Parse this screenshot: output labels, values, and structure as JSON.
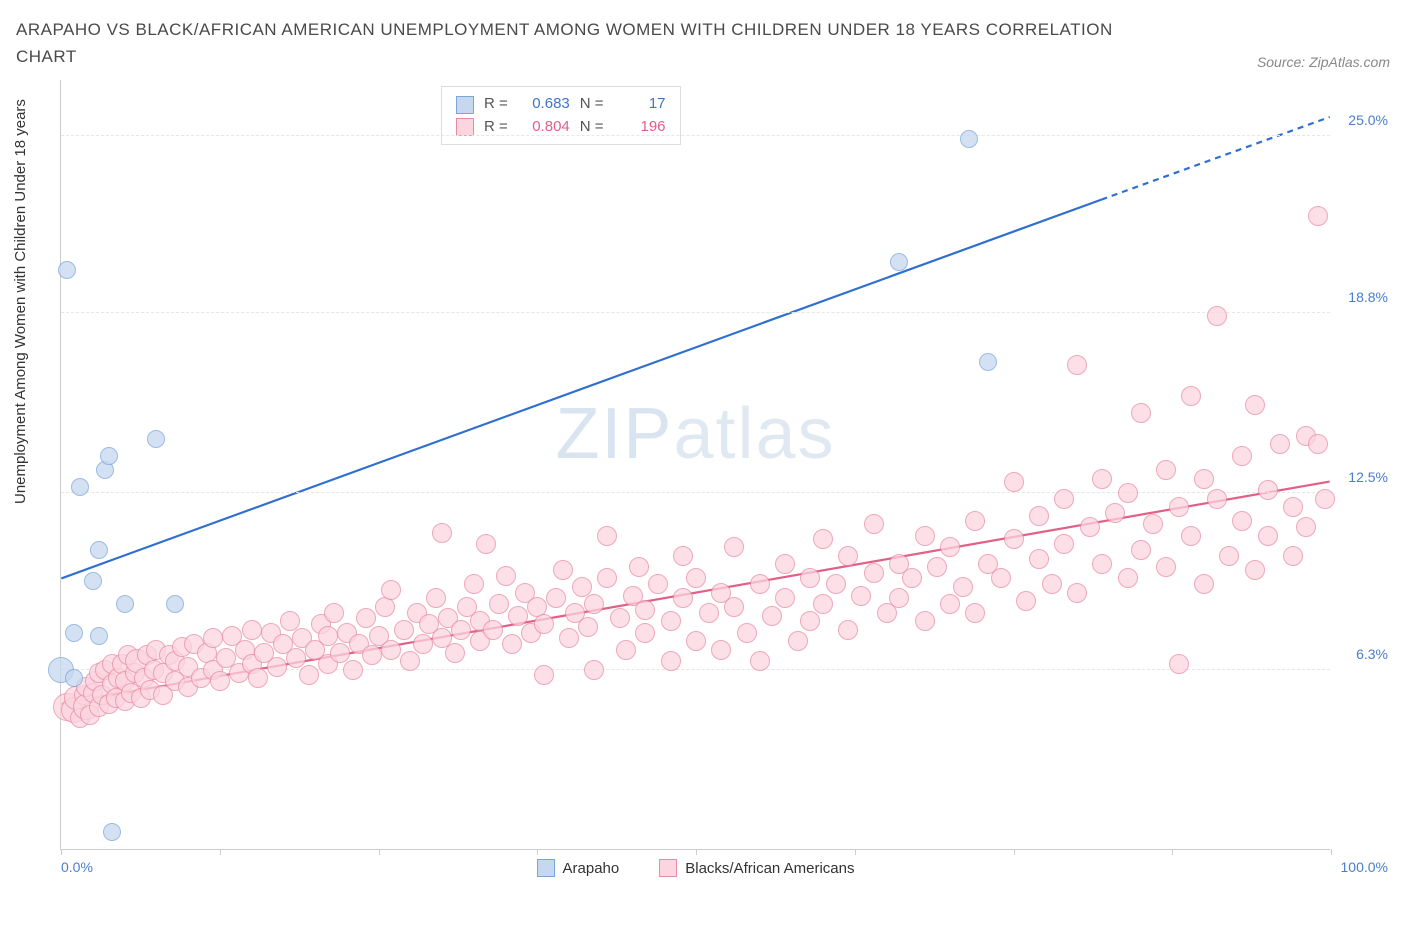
{
  "title": "ARAPAHO VS BLACK/AFRICAN AMERICAN UNEMPLOYMENT AMONG WOMEN WITH CHILDREN UNDER 18 YEARS CORRELATION CHART",
  "source": "Source: ZipAtlas.com",
  "ylabel": "Unemployment Among Women with Children Under 18 years",
  "watermark_a": "ZIP",
  "watermark_b": "atlas",
  "chart": {
    "type": "scatter",
    "xlim": [
      0,
      100
    ],
    "ylim": [
      0,
      27
    ],
    "x_min_label": "0.0%",
    "x_max_label": "100.0%",
    "y_ticks": [
      6.3,
      12.5,
      18.8,
      25.0
    ],
    "y_tick_labels": [
      "6.3%",
      "12.5%",
      "18.8%",
      "25.0%"
    ],
    "x_tick_positions": [
      0,
      12.5,
      25,
      37.5,
      50,
      62.5,
      75,
      87.5,
      100
    ],
    "grid_color": "#e6e6e6",
    "background_color": "#ffffff",
    "axis_color": "#cccccc",
    "tick_label_color": "#4a7ecb",
    "series": {
      "arapaho": {
        "label": "Arapaho",
        "R_label": "R =",
        "R": "0.683",
        "N_label": "N =",
        "N": "17",
        "fill": "#c5d8f0",
        "stroke": "#7aa6d9",
        "value_color": "#3f77c6",
        "marker_r": 9,
        "line_color": "#2f6fcf",
        "line_width": 2.2,
        "trend": {
          "x1": 0,
          "y1": 9.5,
          "x2_solid": 82,
          "y2_solid": 22.8,
          "x2": 100,
          "y2": 25.7
        },
        "points": [
          {
            "x": 0,
            "y": 6.3,
            "r": 13
          },
          {
            "x": 0.5,
            "y": 20.3
          },
          {
            "x": 1,
            "y": 7.6
          },
          {
            "x": 1,
            "y": 6.0
          },
          {
            "x": 1.5,
            "y": 12.7
          },
          {
            "x": 2.5,
            "y": 9.4
          },
          {
            "x": 3,
            "y": 7.5
          },
          {
            "x": 3,
            "y": 10.5
          },
          {
            "x": 3.5,
            "y": 13.3
          },
          {
            "x": 3.8,
            "y": 13.8
          },
          {
            "x": 4,
            "y": 0.6
          },
          {
            "x": 5,
            "y": 8.6
          },
          {
            "x": 7.5,
            "y": 14.4
          },
          {
            "x": 9,
            "y": 8.6
          },
          {
            "x": 66,
            "y": 20.6
          },
          {
            "x": 71.5,
            "y": 24.9
          },
          {
            "x": 73,
            "y": 17.1
          }
        ]
      },
      "black": {
        "label": "Blacks/African Americans",
        "R_label": "R =",
        "R": "0.804",
        "N_label": "N =",
        "N": "196",
        "fill": "#fbd5df",
        "stroke": "#e98ba6",
        "value_color": "#e35f88",
        "marker_r": 10,
        "line_color": "#e35f88",
        "line_width": 2.2,
        "trend": {
          "x1": 0,
          "y1": 5.1,
          "x2": 100,
          "y2": 12.9
        },
        "points": [
          {
            "x": 0.5,
            "y": 5.0,
            "r": 14
          },
          {
            "x": 1,
            "y": 4.9,
            "r": 13
          },
          {
            "x": 1.2,
            "y": 5.3,
            "r": 12
          },
          {
            "x": 1.5,
            "y": 4.6
          },
          {
            "x": 1.8,
            "y": 5.4
          },
          {
            "x": 2,
            "y": 5.0,
            "r": 13
          },
          {
            "x": 2,
            "y": 5.7
          },
          {
            "x": 2.3,
            "y": 4.7
          },
          {
            "x": 2.5,
            "y": 5.5
          },
          {
            "x": 2.7,
            "y": 5.9
          },
          {
            "x": 3,
            "y": 5.0
          },
          {
            "x": 3,
            "y": 6.2
          },
          {
            "x": 3.2,
            "y": 5.4
          },
          {
            "x": 3.5,
            "y": 6.3
          },
          {
            "x": 3.8,
            "y": 5.1
          },
          {
            "x": 4,
            "y": 5.8
          },
          {
            "x": 4,
            "y": 6.5
          },
          {
            "x": 4.3,
            "y": 5.3
          },
          {
            "x": 4.5,
            "y": 6.0
          },
          {
            "x": 4.8,
            "y": 6.5
          },
          {
            "x": 5,
            "y": 5.2
          },
          {
            "x": 5,
            "y": 5.9
          },
          {
            "x": 5.3,
            "y": 6.8
          },
          {
            "x": 5.5,
            "y": 5.5
          },
          {
            "x": 5.8,
            "y": 6.2
          },
          {
            "x": 6,
            "y": 6.6,
            "r": 12
          },
          {
            "x": 6.3,
            "y": 5.3
          },
          {
            "x": 6.5,
            "y": 6.0
          },
          {
            "x": 6.8,
            "y": 6.8
          },
          {
            "x": 7,
            "y": 5.6
          },
          {
            "x": 7.3,
            "y": 6.3
          },
          {
            "x": 7.5,
            "y": 7.0
          },
          {
            "x": 8,
            "y": 5.4
          },
          {
            "x": 8,
            "y": 6.2
          },
          {
            "x": 8.5,
            "y": 6.8
          },
          {
            "x": 9,
            "y": 5.9
          },
          {
            "x": 9,
            "y": 6.6
          },
          {
            "x": 9.5,
            "y": 7.1
          },
          {
            "x": 10,
            "y": 5.7
          },
          {
            "x": 10,
            "y": 6.4
          },
          {
            "x": 10.5,
            "y": 7.2
          },
          {
            "x": 11,
            "y": 6.0
          },
          {
            "x": 11.5,
            "y": 6.9
          },
          {
            "x": 12,
            "y": 6.3
          },
          {
            "x": 12,
            "y": 7.4
          },
          {
            "x": 12.5,
            "y": 5.9
          },
          {
            "x": 13,
            "y": 6.7
          },
          {
            "x": 13.5,
            "y": 7.5
          },
          {
            "x": 14,
            "y": 6.2
          },
          {
            "x": 14.5,
            "y": 7.0
          },
          {
            "x": 15,
            "y": 6.5
          },
          {
            "x": 15,
            "y": 7.7
          },
          {
            "x": 15.5,
            "y": 6.0
          },
          {
            "x": 16,
            "y": 6.9
          },
          {
            "x": 16.5,
            "y": 7.6
          },
          {
            "x": 17,
            "y": 6.4
          },
          {
            "x": 17.5,
            "y": 7.2
          },
          {
            "x": 18,
            "y": 8.0
          },
          {
            "x": 18.5,
            "y": 6.7
          },
          {
            "x": 19,
            "y": 7.4
          },
          {
            "x": 19.5,
            "y": 6.1
          },
          {
            "x": 20,
            "y": 7.0
          },
          {
            "x": 20.5,
            "y": 7.9
          },
          {
            "x": 21,
            "y": 6.5
          },
          {
            "x": 21,
            "y": 7.5
          },
          {
            "x": 21.5,
            "y": 8.3
          },
          {
            "x": 22,
            "y": 6.9
          },
          {
            "x": 22.5,
            "y": 7.6
          },
          {
            "x": 23,
            "y": 6.3
          },
          {
            "x": 23.5,
            "y": 7.2
          },
          {
            "x": 24,
            "y": 8.1
          },
          {
            "x": 24.5,
            "y": 6.8
          },
          {
            "x": 25,
            "y": 7.5
          },
          {
            "x": 25.5,
            "y": 8.5
          },
          {
            "x": 26,
            "y": 7.0
          },
          {
            "x": 26,
            "y": 9.1
          },
          {
            "x": 27,
            "y": 7.7
          },
          {
            "x": 27.5,
            "y": 6.6
          },
          {
            "x": 28,
            "y": 8.3
          },
          {
            "x": 28.5,
            "y": 7.2
          },
          {
            "x": 29,
            "y": 7.9
          },
          {
            "x": 29.5,
            "y": 8.8
          },
          {
            "x": 30,
            "y": 7.4
          },
          {
            "x": 30,
            "y": 11.1
          },
          {
            "x": 30.5,
            "y": 8.1
          },
          {
            "x": 31,
            "y": 6.9
          },
          {
            "x": 31.5,
            "y": 7.7
          },
          {
            "x": 32,
            "y": 8.5
          },
          {
            "x": 32.5,
            "y": 9.3
          },
          {
            "x": 33,
            "y": 7.3
          },
          {
            "x": 33,
            "y": 8.0
          },
          {
            "x": 33.5,
            "y": 10.7
          },
          {
            "x": 34,
            "y": 7.7
          },
          {
            "x": 34.5,
            "y": 8.6
          },
          {
            "x": 35,
            "y": 9.6
          },
          {
            "x": 35.5,
            "y": 7.2
          },
          {
            "x": 36,
            "y": 8.2
          },
          {
            "x": 36.5,
            "y": 9.0
          },
          {
            "x": 37,
            "y": 7.6
          },
          {
            "x": 37.5,
            "y": 8.5
          },
          {
            "x": 38,
            "y": 6.1
          },
          {
            "x": 38,
            "y": 7.9
          },
          {
            "x": 39,
            "y": 8.8
          },
          {
            "x": 39.5,
            "y": 9.8
          },
          {
            "x": 40,
            "y": 7.4
          },
          {
            "x": 40.5,
            "y": 8.3
          },
          {
            "x": 41,
            "y": 9.2
          },
          {
            "x": 41.5,
            "y": 7.8
          },
          {
            "x": 42,
            "y": 6.3
          },
          {
            "x": 42,
            "y": 8.6
          },
          {
            "x": 43,
            "y": 11.0
          },
          {
            "x": 43,
            "y": 9.5
          },
          {
            "x": 44,
            "y": 8.1
          },
          {
            "x": 44.5,
            "y": 7.0
          },
          {
            "x": 45,
            "y": 8.9
          },
          {
            "x": 45.5,
            "y": 9.9
          },
          {
            "x": 46,
            "y": 7.6
          },
          {
            "x": 46,
            "y": 8.4
          },
          {
            "x": 47,
            "y": 9.3
          },
          {
            "x": 48,
            "y": 6.6
          },
          {
            "x": 48,
            "y": 8.0
          },
          {
            "x": 49,
            "y": 8.8
          },
          {
            "x": 49,
            "y": 10.3
          },
          {
            "x": 50,
            "y": 7.3
          },
          {
            "x": 50,
            "y": 9.5
          },
          {
            "x": 51,
            "y": 8.3
          },
          {
            "x": 52,
            "y": 7.0
          },
          {
            "x": 52,
            "y": 9.0
          },
          {
            "x": 53,
            "y": 10.6
          },
          {
            "x": 53,
            "y": 8.5
          },
          {
            "x": 54,
            "y": 7.6
          },
          {
            "x": 55,
            "y": 9.3
          },
          {
            "x": 55,
            "y": 6.6
          },
          {
            "x": 56,
            "y": 8.2
          },
          {
            "x": 57,
            "y": 10.0
          },
          {
            "x": 57,
            "y": 8.8
          },
          {
            "x": 58,
            "y": 7.3
          },
          {
            "x": 59,
            "y": 9.5
          },
          {
            "x": 59,
            "y": 8.0
          },
          {
            "x": 60,
            "y": 10.9
          },
          {
            "x": 60,
            "y": 8.6
          },
          {
            "x": 61,
            "y": 9.3
          },
          {
            "x": 62,
            "y": 7.7
          },
          {
            "x": 62,
            "y": 10.3
          },
          {
            "x": 63,
            "y": 8.9
          },
          {
            "x": 64,
            "y": 9.7
          },
          {
            "x": 64,
            "y": 11.4
          },
          {
            "x": 65,
            "y": 8.3
          },
          {
            "x": 66,
            "y": 10.0
          },
          {
            "x": 66,
            "y": 8.8
          },
          {
            "x": 67,
            "y": 9.5
          },
          {
            "x": 68,
            "y": 11.0
          },
          {
            "x": 68,
            "y": 8.0
          },
          {
            "x": 69,
            "y": 9.9
          },
          {
            "x": 70,
            "y": 8.6
          },
          {
            "x": 70,
            "y": 10.6
          },
          {
            "x": 71,
            "y": 9.2
          },
          {
            "x": 72,
            "y": 11.5
          },
          {
            "x": 72,
            "y": 8.3
          },
          {
            "x": 73,
            "y": 10.0
          },
          {
            "x": 74,
            "y": 9.5
          },
          {
            "x": 75,
            "y": 12.9
          },
          {
            "x": 75,
            "y": 10.9
          },
          {
            "x": 76,
            "y": 8.7
          },
          {
            "x": 77,
            "y": 11.7
          },
          {
            "x": 77,
            "y": 10.2
          },
          {
            "x": 78,
            "y": 9.3
          },
          {
            "x": 79,
            "y": 12.3
          },
          {
            "x": 79,
            "y": 10.7
          },
          {
            "x": 80,
            "y": 17.0
          },
          {
            "x": 80,
            "y": 9.0
          },
          {
            "x": 81,
            "y": 11.3
          },
          {
            "x": 82,
            "y": 13.0
          },
          {
            "x": 82,
            "y": 10.0
          },
          {
            "x": 83,
            "y": 11.8
          },
          {
            "x": 84,
            "y": 9.5
          },
          {
            "x": 84,
            "y": 12.5
          },
          {
            "x": 85,
            "y": 10.5
          },
          {
            "x": 85,
            "y": 15.3
          },
          {
            "x": 86,
            "y": 11.4
          },
          {
            "x": 87,
            "y": 13.3
          },
          {
            "x": 87,
            "y": 9.9
          },
          {
            "x": 88,
            "y": 12.0
          },
          {
            "x": 88,
            "y": 6.5
          },
          {
            "x": 89,
            "y": 15.9
          },
          {
            "x": 89,
            "y": 11.0
          },
          {
            "x": 90,
            "y": 13.0
          },
          {
            "x": 90,
            "y": 9.3
          },
          {
            "x": 91,
            "y": 12.3
          },
          {
            "x": 91,
            "y": 18.7
          },
          {
            "x": 92,
            "y": 10.3
          },
          {
            "x": 93,
            "y": 13.8
          },
          {
            "x": 93,
            "y": 11.5
          },
          {
            "x": 94,
            "y": 15.6
          },
          {
            "x": 94,
            "y": 9.8
          },
          {
            "x": 95,
            "y": 12.6
          },
          {
            "x": 95,
            "y": 11.0
          },
          {
            "x": 96,
            "y": 14.2
          },
          {
            "x": 97,
            "y": 10.3
          },
          {
            "x": 97,
            "y": 12.0
          },
          {
            "x": 98,
            "y": 14.5
          },
          {
            "x": 98,
            "y": 11.3
          },
          {
            "x": 99,
            "y": 22.2
          },
          {
            "x": 99,
            "y": 14.2
          },
          {
            "x": 99.5,
            "y": 12.3
          }
        ]
      }
    }
  }
}
